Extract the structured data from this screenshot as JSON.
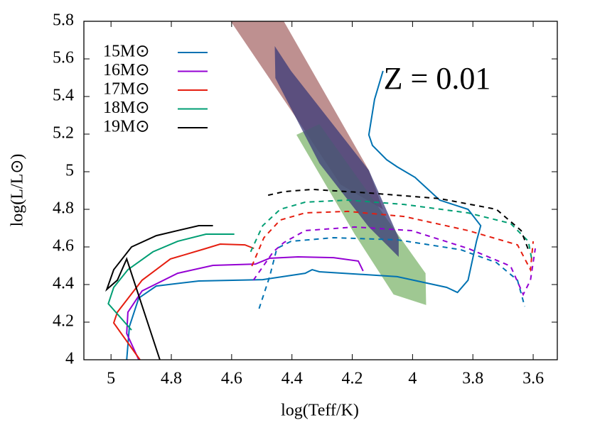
{
  "chart_data": {
    "type": "line",
    "x_label": "log(Teff/K)",
    "y_label": "log(L/L⊙)",
    "annotation": "Z = 0.01",
    "xlim": [
      5.09,
      3.52
    ],
    "ylim": [
      4,
      5.8
    ],
    "xticks": [
      5,
      4.8,
      4.6,
      4.4,
      4.2,
      4,
      3.8,
      3.6
    ],
    "yticks": [
      4,
      4.2,
      4.4,
      4.6,
      4.8,
      5,
      5.2,
      5.4,
      5.6,
      5.8
    ],
    "legend": "upper-left",
    "regions": [
      {
        "color": "#a86b6b",
        "x": [
          4.603,
          4.427,
          4.145,
          4.098,
          4.239,
          4.38
        ],
        "values": [
          5.8,
          5.8,
          5.008,
          4.8,
          4.932,
          5.272
        ]
      },
      {
        "color": "#7fb56e",
        "x": [
          4.385,
          4.309,
          3.957,
          3.955,
          4.063,
          4.192
        ],
        "values": [
          5.196,
          5.253,
          4.46,
          4.291,
          4.347,
          4.668
        ]
      },
      {
        "color": "#3a3a78",
        "x": [
          4.457,
          4.403,
          4.145,
          4.046,
          4.046,
          4.145,
          4.309,
          4.455
        ],
        "values": [
          5.668,
          5.536,
          5.008,
          4.649,
          4.547,
          4.706,
          5.045,
          5.498
        ]
      }
    ],
    "series": [
      {
        "name": "15M⊙",
        "color": "#0072b2",
        "pieces": [
          {
            "style": "solid",
            "x": [
              4.948,
              4.939,
              4.908,
              4.85,
              4.709,
              4.497,
              4.356,
              4.333,
              4.309,
              4.051,
              3.887,
              3.851,
              3.816,
              3.788,
              3.774,
              3.816,
              3.91,
              3.992,
              4.051,
              4.086,
              4.133,
              4.145,
              4.126,
              4.098
            ],
            "values": [
              4.0,
              4.177,
              4.328,
              4.392,
              4.419,
              4.426,
              4.46,
              4.479,
              4.468,
              4.442,
              4.385,
              4.358,
              4.423,
              4.63,
              4.713,
              4.8,
              4.849,
              4.97,
              5.026,
              5.064,
              5.14,
              5.196,
              5.385,
              5.536
            ]
          },
          {
            "style": "dashed",
            "x": [
              4.509,
              4.474,
              4.45,
              4.403,
              4.262,
              4.051,
              3.84,
              3.722,
              3.652,
              3.628
            ],
            "values": [
              4.272,
              4.442,
              4.592,
              4.63,
              4.649,
              4.638,
              4.585,
              4.517,
              4.423,
              4.283
            ]
          }
        ]
      },
      {
        "name": "16M⊙",
        "color": "#9400d3",
        "pieces": [
          {
            "style": "solid",
            "x": [
              4.908,
              4.948,
              4.944,
              4.897,
              4.779,
              4.662,
              4.521,
              4.474,
              4.38,
              4.262,
              4.18,
              4.164
            ],
            "values": [
              4.0,
              4.14,
              4.253,
              4.366,
              4.46,
              4.502,
              4.509,
              4.54,
              4.547,
              4.543,
              4.525,
              4.472
            ]
          },
          {
            "style": "dashed",
            "x": [
              4.528,
              4.462,
              4.427,
              4.356,
              4.192,
              4.004,
              3.816,
              3.675,
              3.633,
              3.609,
              3.593
            ],
            "values": [
              4.423,
              4.574,
              4.623,
              4.687,
              4.706,
              4.687,
              4.592,
              4.498,
              4.347,
              4.423,
              4.592
            ]
          }
        ]
      },
      {
        "name": "17M⊙",
        "color": "#e51e10",
        "pieces": [
          {
            "style": "solid",
            "x": [
              4.904,
              4.991,
              4.979,
              4.897,
              4.803,
              4.685,
              4.638,
              4.556,
              4.526
            ],
            "values": [
              4.0,
              4.196,
              4.253,
              4.423,
              4.536,
              4.592,
              4.615,
              4.611,
              4.592
            ]
          },
          {
            "style": "dashed",
            "x": [
              4.533,
              4.493,
              4.439,
              4.356,
              4.215,
              4.028,
              3.816,
              3.652,
              3.609,
              3.6
            ],
            "values": [
              4.498,
              4.649,
              4.743,
              4.781,
              4.789,
              4.762,
              4.687,
              4.611,
              4.479,
              4.63
            ]
          }
        ]
      },
      {
        "name": "18M⊙",
        "color": "#009e73",
        "pieces": [
          {
            "style": "solid",
            "x": [
              4.932,
              5.009,
              4.991,
              4.944,
              4.861,
              4.779,
              4.685,
              4.591
            ],
            "values": [
              4.158,
              4.298,
              4.385,
              4.479,
              4.574,
              4.63,
              4.668,
              4.668
            ]
          },
          {
            "style": "dashed",
            "x": [
              4.537,
              4.497,
              4.439,
              4.356,
              4.215,
              4.028,
              3.816,
              3.675,
              3.616,
              3.605
            ],
            "values": [
              4.574,
              4.713,
              4.8,
              4.838,
              4.849,
              4.826,
              4.781,
              4.725,
              4.63,
              4.536
            ]
          }
        ]
      },
      {
        "name": "19M⊙",
        "color": "#000000",
        "pieces": [
          {
            "style": "solid",
            "x": [
              4.838,
              4.948,
              4.979,
              5.014,
              4.991,
              4.932,
              4.85,
              4.779,
              4.709,
              4.662
            ],
            "values": [
              4.0,
              4.536,
              4.423,
              4.374,
              4.479,
              4.6,
              4.66,
              4.687,
              4.713,
              4.713
            ]
          },
          {
            "style": "dashed",
            "x": [
              4.479,
              4.427,
              4.333,
              4.145,
              3.91,
              3.722,
              3.64,
              3.616
            ],
            "values": [
              4.875,
              4.894,
              4.906,
              4.887,
              4.857,
              4.8,
              4.687,
              4.585
            ]
          }
        ]
      }
    ]
  }
}
